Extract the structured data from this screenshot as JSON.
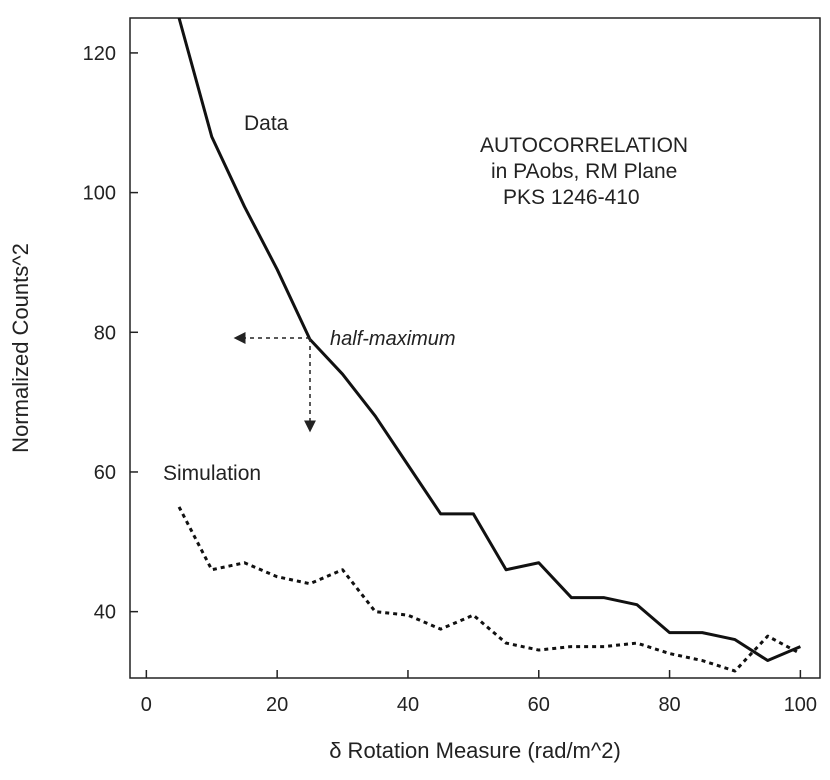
{
  "chart_data": {
    "type": "line",
    "title": "",
    "xlabel": "δ Rotation Measure (rad/m^2)",
    "ylabel": "Normalized Counts^2",
    "xlim": [
      -2.5,
      103
    ],
    "ylim": [
      30.5,
      125
    ],
    "x_ticks": [
      0,
      20,
      40,
      60,
      80,
      100
    ],
    "y_ticks": [
      40,
      60,
      80,
      100,
      120
    ],
    "grid": false,
    "series": [
      {
        "name": "Data",
        "style": "solid",
        "x": [
          5,
          10,
          15,
          20,
          25,
          30,
          35,
          40,
          45,
          50,
          55,
          60,
          65,
          70,
          75,
          80,
          85,
          90,
          95,
          100
        ],
        "y": [
          125,
          108,
          98,
          89,
          79,
          74,
          68,
          61,
          54,
          54,
          46,
          47,
          42,
          42,
          41,
          37,
          37,
          36,
          33,
          35
        ]
      },
      {
        "name": "Simulation",
        "style": "dashed",
        "x": [
          5,
          10,
          15,
          20,
          25,
          30,
          35,
          40,
          45,
          50,
          55,
          60,
          65,
          70,
          75,
          80,
          85,
          90,
          95,
          100
        ],
        "y": [
          55,
          46,
          47,
          45,
          44,
          46,
          40,
          39.5,
          37.5,
          39.5,
          35.5,
          34.5,
          35,
          35,
          35.5,
          34,
          33,
          31.5,
          36.5,
          34
        ]
      }
    ],
    "annotations": {
      "data_label": "Data",
      "simulation_label": "Simulation",
      "half_maximum": "half-maximum",
      "title_lines": [
        "AUTOCORRELATION",
        "in PAobs, RM Plane",
        "PKS 1246-410"
      ]
    }
  }
}
